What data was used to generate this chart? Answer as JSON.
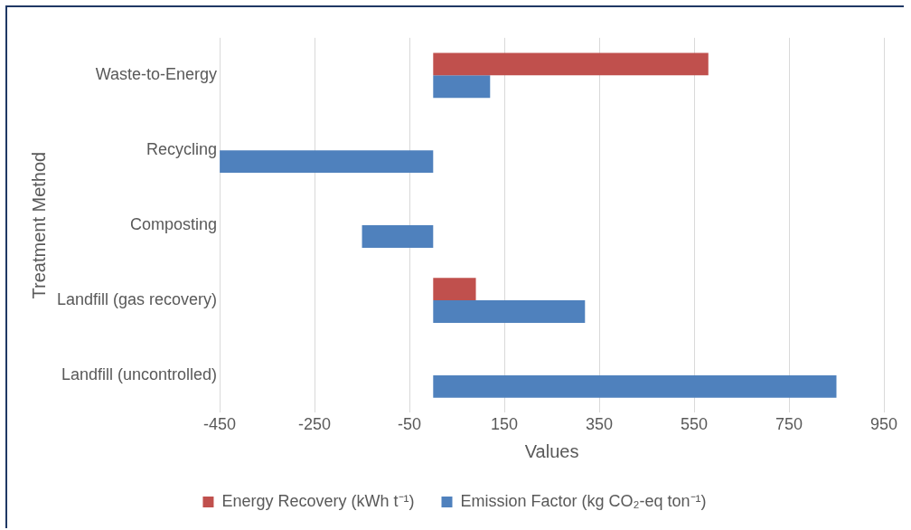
{
  "chart_data": {
    "type": "bar",
    "orientation": "horizontal",
    "xlabel": "Values",
    "ylabel": "Treatment Method",
    "categories": [
      "Waste-to-Energy",
      "Recycling",
      "Composting",
      "Landfill (gas recovery)",
      "Landfill (uncontrolled)"
    ],
    "series": [
      {
        "name": "Energy Recovery (kWh t⁻¹)",
        "color": "#c0504d",
        "values": [
          580,
          null,
          null,
          90,
          null
        ]
      },
      {
        "name": "Emission Factor (kg CO₂-eq ton⁻¹)",
        "color": "#4f81bd",
        "values": [
          120,
          -450,
          -150,
          320,
          850
        ]
      }
    ],
    "xlim": [
      -450,
      950
    ],
    "xticks": [
      -450,
      -250,
      -50,
      150,
      350,
      550,
      750,
      950
    ],
    "grid": "x",
    "legend": "bottom"
  }
}
